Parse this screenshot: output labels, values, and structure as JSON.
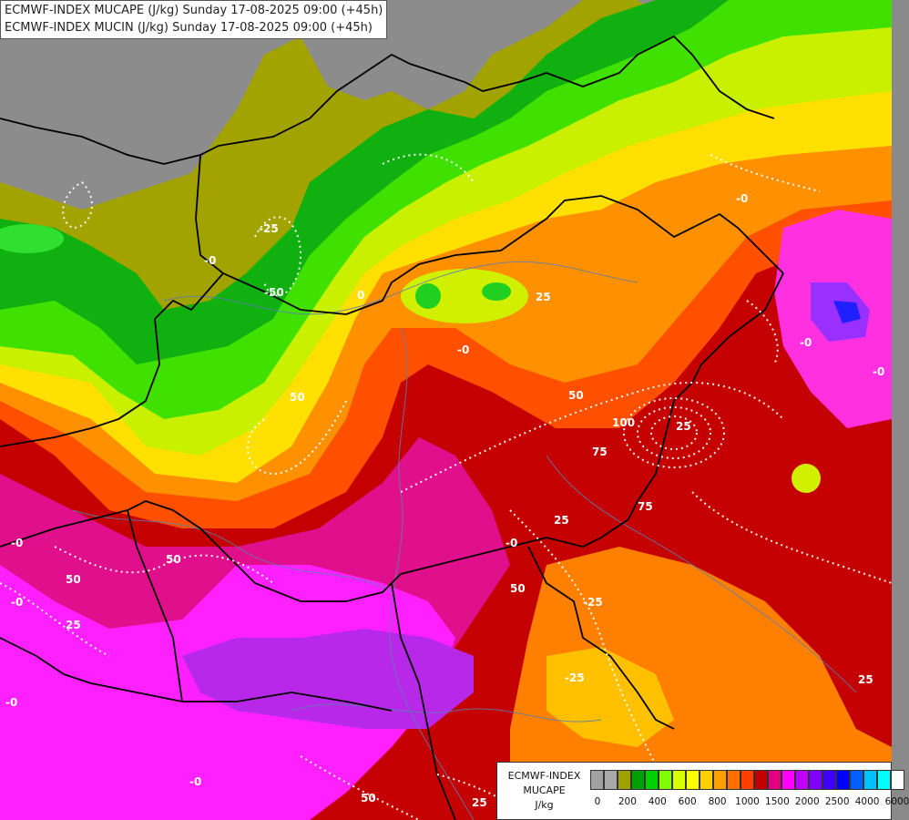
{
  "title": {
    "line1": "ECMWF-INDEX MUCAPE (J/kg) Sunday 17-08-2025 09:00 (+45h)",
    "line2": "ECMWF-INDEX MUCIN (J/kg) Sunday 17-08-2025 09:00 (+45h)"
  },
  "legend": {
    "line1": "ECMWF-INDEX",
    "line2": "MUCAPE",
    "line3": "J/kg",
    "swatch_colors": [
      "#a0a0a0",
      "#a8a8a8",
      "#a0a000",
      "#00a000",
      "#00d000",
      "#80ff00",
      "#d8ff00",
      "#ffff00",
      "#ffd000",
      "#ffa000",
      "#ff7000",
      "#ff4000",
      "#c00000",
      "#e00080",
      "#ff00ff",
      "#c000ff",
      "#8000ff",
      "#4000ff",
      "#0000ff",
      "#0060ff",
      "#00c0ff",
      "#00ffff",
      "#ffffff"
    ],
    "tick_labels": [
      "0",
      "200",
      "400",
      "600",
      "800",
      "1000",
      "1500",
      "2000",
      "2500",
      "4000",
      "6000"
    ]
  },
  "contour_labels": [
    "-25",
    "-0",
    "0",
    "-0",
    "-50",
    "50",
    "-0",
    "25",
    "50",
    "75",
    "100",
    "25",
    "50",
    "75",
    "50",
    "25",
    "-0",
    "-25",
    "25",
    "50",
    "-0",
    "-25",
    "-0",
    "-0",
    "-0",
    "25",
    "-0",
    "25",
    "-0",
    "50"
  ]
}
